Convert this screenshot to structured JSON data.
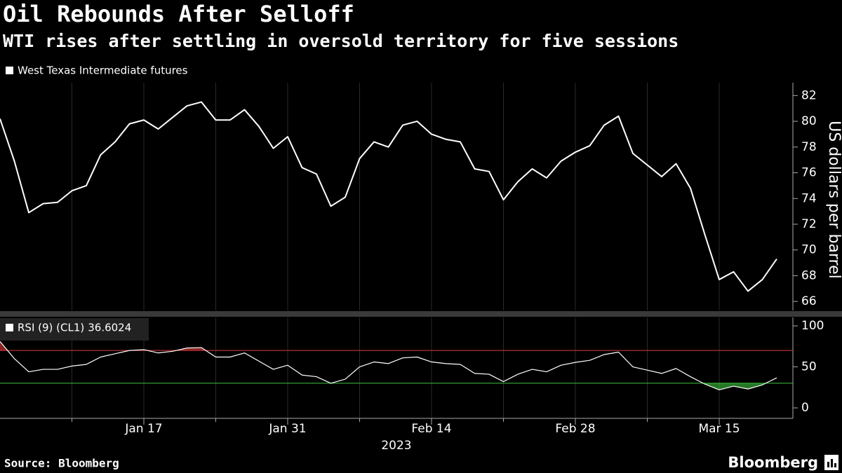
{
  "title": "Oil Rebounds After Selloff",
  "subtitle": "WTI rises after settling in oversold territory for five sessions",
  "source": "Source: Bloomberg",
  "brand": "Bloomberg",
  "chart_data": [
    {
      "type": "line",
      "y_label": "US dollars per barrel",
      "categories": [
        null,
        null,
        null,
        null,
        null,
        null,
        null,
        null,
        null,
        null,
        "Jan 17",
        null,
        null,
        null,
        null,
        null,
        null,
        null,
        null,
        null,
        "Jan 31",
        null,
        null,
        null,
        null,
        null,
        null,
        null,
        null,
        null,
        "Feb 14",
        null,
        null,
        null,
        null,
        null,
        null,
        null,
        null,
        null,
        "Feb 28",
        null,
        null,
        null,
        null,
        null,
        null,
        null,
        null,
        null,
        "Mar 15",
        null,
        null,
        null,
        null
      ],
      "series": [
        {
          "name": "West Texas Intermediate futures",
          "color": "#ffffff",
          "values": [
            80.2,
            76.9,
            72.9,
            73.6,
            73.7,
            74.6,
            75.0,
            77.4,
            78.4,
            79.8,
            80.1,
            79.4,
            80.3,
            81.2,
            81.5,
            80.1,
            80.1,
            80.9,
            79.6,
            77.9,
            78.8,
            76.4,
            75.9,
            73.4,
            74.1,
            77.1,
            78.4,
            78.0,
            79.7,
            80.0,
            79.0,
            78.6,
            78.4,
            76.3,
            76.1,
            73.9,
            75.3,
            76.3,
            75.6,
            76.9,
            77.6,
            78.1,
            79.7,
            80.4,
            77.5,
            76.6,
            75.7,
            76.7,
            74.8,
            71.2,
            67.7,
            68.3,
            66.8,
            67.7,
            69.3
          ]
        }
      ],
      "ylim": [
        65.3,
        83
      ],
      "yticks": [
        66,
        68,
        70,
        72,
        74,
        76,
        78,
        80,
        82
      ]
    },
    {
      "type": "line",
      "x_label": "2023",
      "series": [
        {
          "name": "RSI (9) (CL1)",
          "color": "#ffffff",
          "values": [
            81,
            60,
            44,
            47,
            47,
            51,
            53,
            62,
            66,
            70,
            71,
            67,
            69,
            73,
            73.5,
            62,
            62,
            67,
            57,
            47,
            52,
            40,
            38,
            30,
            35,
            50,
            56,
            54,
            61,
            62,
            56,
            54,
            53,
            42,
            41,
            32,
            41,
            47,
            44,
            52,
            55.5,
            58,
            65,
            68,
            50,
            46,
            42,
            48,
            38,
            29,
            22,
            26.5,
            23,
            28,
            36.6024
          ]
        }
      ],
      "thresholds": [
        {
          "value": 70,
          "color": "#e03a3a"
        },
        {
          "value": 30,
          "color": "#3cc43c"
        }
      ],
      "ylim": [
        -12.8,
        110.3
      ],
      "yticks": [
        0,
        50,
        100
      ]
    }
  ]
}
